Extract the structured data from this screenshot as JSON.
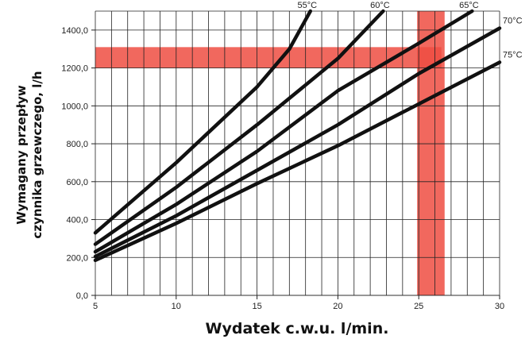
{
  "chart_data": {
    "type": "line",
    "xlabel": "Wydatek c.w.u. l/min.",
    "ylabel_line1": "Wymagany przepływ",
    "ylabel_line2": "czynnika grzewczego, l/h",
    "xlim": [
      5,
      30
    ],
    "ylim": [
      0,
      1500
    ],
    "x_tick_labels": [
      "5",
      "10",
      "15",
      "20",
      "25",
      "30"
    ],
    "x_tick_values": [
      5,
      10,
      15,
      20,
      25,
      30
    ],
    "y_tick_labels": [
      "0,0",
      "200,0",
      "400,0",
      "600,0",
      "800,0",
      "1000,0",
      "1200,0",
      "1400,0"
    ],
    "y_tick_values": [
      0,
      200,
      400,
      600,
      800,
      1000,
      1200,
      1400
    ],
    "x_minor_step": 1,
    "y_grid_step": 200,
    "grid": true,
    "series": [
      {
        "name": "55°C",
        "points": [
          [
            5,
            330
          ],
          [
            10,
            700
          ],
          [
            15,
            1100
          ],
          [
            17,
            1300
          ],
          [
            18.3,
            1500
          ]
        ]
      },
      {
        "name": "60°C",
        "points": [
          [
            5,
            270
          ],
          [
            10,
            570
          ],
          [
            15,
            900
          ],
          [
            20,
            1250
          ],
          [
            22.8,
            1500
          ]
        ]
      },
      {
        "name": "65°C",
        "points": [
          [
            5,
            230
          ],
          [
            10,
            480
          ],
          [
            15,
            760
          ],
          [
            20,
            1080
          ],
          [
            25,
            1330
          ],
          [
            28.3,
            1500
          ]
        ]
      },
      {
        "name": "70°C",
        "points": [
          [
            5,
            205
          ],
          [
            10,
            420
          ],
          [
            15,
            660
          ],
          [
            20,
            900
          ],
          [
            25,
            1170
          ],
          [
            30,
            1410
          ]
        ]
      },
      {
        "name": "75°C",
        "points": [
          [
            5,
            185
          ],
          [
            10,
            380
          ],
          [
            15,
            590
          ],
          [
            20,
            790
          ],
          [
            25,
            1010
          ],
          [
            30,
            1230
          ]
        ]
      }
    ],
    "highlights": [
      {
        "orientation": "horizontal",
        "from": 1200,
        "to": 1310,
        "x_from": 5,
        "x_to": 26.4,
        "color": "#ee4d42"
      },
      {
        "orientation": "vertical",
        "from": 24.9,
        "to": 26.6,
        "y_from": 0,
        "y_to": 1500,
        "color": "#ee4d42"
      }
    ]
  }
}
